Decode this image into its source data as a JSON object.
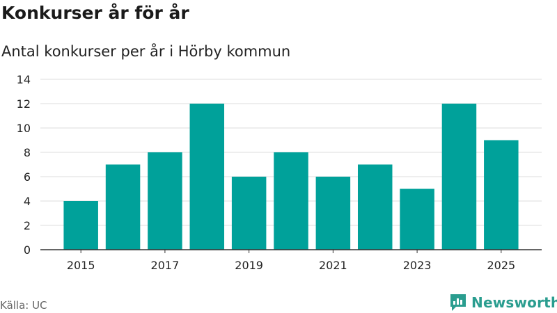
{
  "header": {
    "title": "Konkurser år för år",
    "subtitle": "Antal konkurser per år i Hörby kommun"
  },
  "footer": {
    "source": "Källa: UC",
    "brand": "Newsworthy",
    "brand_color": "#2a9d8f"
  },
  "chart_data": {
    "type": "bar",
    "title": "Konkurser år för år",
    "subtitle": "Antal konkurser per år i Hörby kommun",
    "categories": [
      2015,
      2016,
      2017,
      2018,
      2019,
      2020,
      2021,
      2022,
      2023,
      2024,
      2025
    ],
    "values": [
      4,
      7,
      8,
      12,
      6,
      8,
      6,
      7,
      5,
      12,
      9
    ],
    "x_tick_labels": [
      "2015",
      "2017",
      "2019",
      "2021",
      "2023",
      "2025"
    ],
    "y_ticks": [
      0,
      2,
      4,
      6,
      8,
      10,
      12,
      14
    ],
    "ylim": [
      0,
      14
    ],
    "xlabel": "",
    "ylabel": "",
    "grid": true,
    "bar_color": "#00a19a",
    "grid_color": "#dddddd"
  }
}
